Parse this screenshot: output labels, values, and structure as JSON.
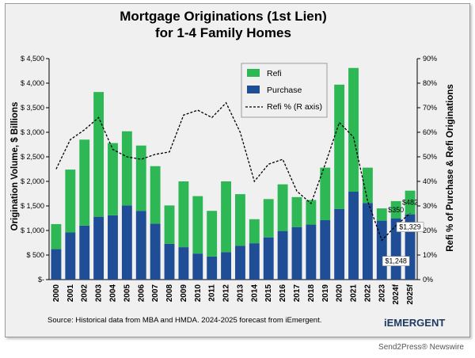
{
  "brand": "iEMERGENT",
  "footer_credit": "Send2Press® Newswire",
  "source_note": "Source:  Historical data from MBA and HMDA.  2024-2025 forecast from iEmergent.",
  "colors": {
    "refi": "#2db855",
    "purchase": "#1f4e96",
    "line": "#000000",
    "background": "#f0f0f0"
  },
  "chart_data": {
    "type": "bar",
    "stacked": true,
    "title": "Mortgage Originations (1st Lien)",
    "subtitle": "for 1-4 Family Homes",
    "ylabel": "Origination Volume, $ Billions",
    "y2label": "Refi % of Purchase & Refi Originations",
    "ylim": [
      0,
      4500
    ],
    "y2lim": [
      0,
      90
    ],
    "yticks": [
      "$-",
      "$ 500",
      "$ 1,000",
      "$ 1,500",
      "$ 2,000",
      "$ 2,500",
      "$ 3,000",
      "$ 3,500",
      "$ 4,000",
      "$ 4,500"
    ],
    "y2ticks": [
      "0%",
      "10%",
      "20%",
      "30%",
      "40%",
      "50%",
      "60%",
      "70%",
      "80%",
      "90%"
    ],
    "categories": [
      "2000",
      "2001",
      "2002",
      "2003",
      "2004",
      "2005",
      "2006",
      "2007",
      "2008",
      "2009",
      "2010",
      "2011",
      "2012",
      "2013",
      "2014",
      "2015",
      "2016",
      "2017",
      "2018",
      "2019",
      "2020",
      "2021",
      "2022",
      "2023",
      "2024f",
      "2025f"
    ],
    "series": [
      {
        "name": "Purchase",
        "values": [
          620,
          960,
          1100,
          1280,
          1310,
          1510,
          1400,
          1140,
          730,
          660,
          530,
          470,
          560,
          690,
          740,
          860,
          990,
          1070,
          1120,
          1210,
          1440,
          1790,
          1560,
          1200,
          1248,
          1329
        ]
      },
      {
        "name": "Refi",
        "values": [
          510,
          1280,
          1750,
          2540,
          1470,
          1510,
          1330,
          1170,
          780,
          1340,
          1170,
          930,
          1440,
          1050,
          490,
          780,
          950,
          610,
          500,
          1070,
          2530,
          2520,
          720,
          250,
          350,
          482
        ]
      },
      {
        "name": "Refi % (R axis)",
        "axis": "right",
        "values": [
          45,
          57,
          61,
          66,
          53,
          50,
          49,
          51,
          52,
          67,
          69,
          66,
          72,
          60,
          40,
          47,
          49,
          36,
          31,
          47,
          64,
          58,
          32,
          16,
          22,
          27
        ]
      }
    ],
    "data_labels": [
      "$350",
      "$482",
      "$1,248",
      "$1,329"
    ],
    "legend_position": "top-center",
    "grid": false
  }
}
